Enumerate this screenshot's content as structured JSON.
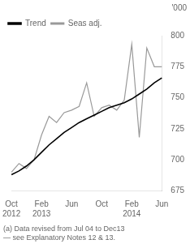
{
  "chart_data": {
    "type": "line",
    "ylabel": "'000",
    "footnote": "(a) Data revised from Jul 04 to Dec13\n— see Explanatory Notes 12 & 13.",
    "categories": [
      "Oct\n2012",
      null,
      null,
      null,
      "Feb\n2013",
      null,
      null,
      null,
      "Jun",
      null,
      null,
      null,
      "Oct",
      null,
      null,
      null,
      "Feb\n2014",
      null,
      null,
      null,
      "Jun"
    ],
    "series": [
      {
        "name": "Trend",
        "color": "#000000",
        "values": [
          688,
          691,
          695,
          700,
          706,
          712,
          717,
          722,
          726,
          730,
          733,
          736,
          739,
          742,
          744,
          746,
          749,
          753,
          757,
          762,
          766
        ]
      },
      {
        "name": "Seas adj.",
        "color": "#999999",
        "values": [
          690,
          697,
          693,
          700,
          720,
          735,
          730,
          738,
          740,
          743,
          762,
          735,
          742,
          744,
          740,
          748,
          793,
          718,
          790,
          775,
          775
        ]
      }
    ],
    "ylim": [
      675,
      800
    ],
    "yticks": [
      675,
      700,
      725,
      750,
      775,
      800
    ],
    "grid": false,
    "legend": "upper left"
  }
}
